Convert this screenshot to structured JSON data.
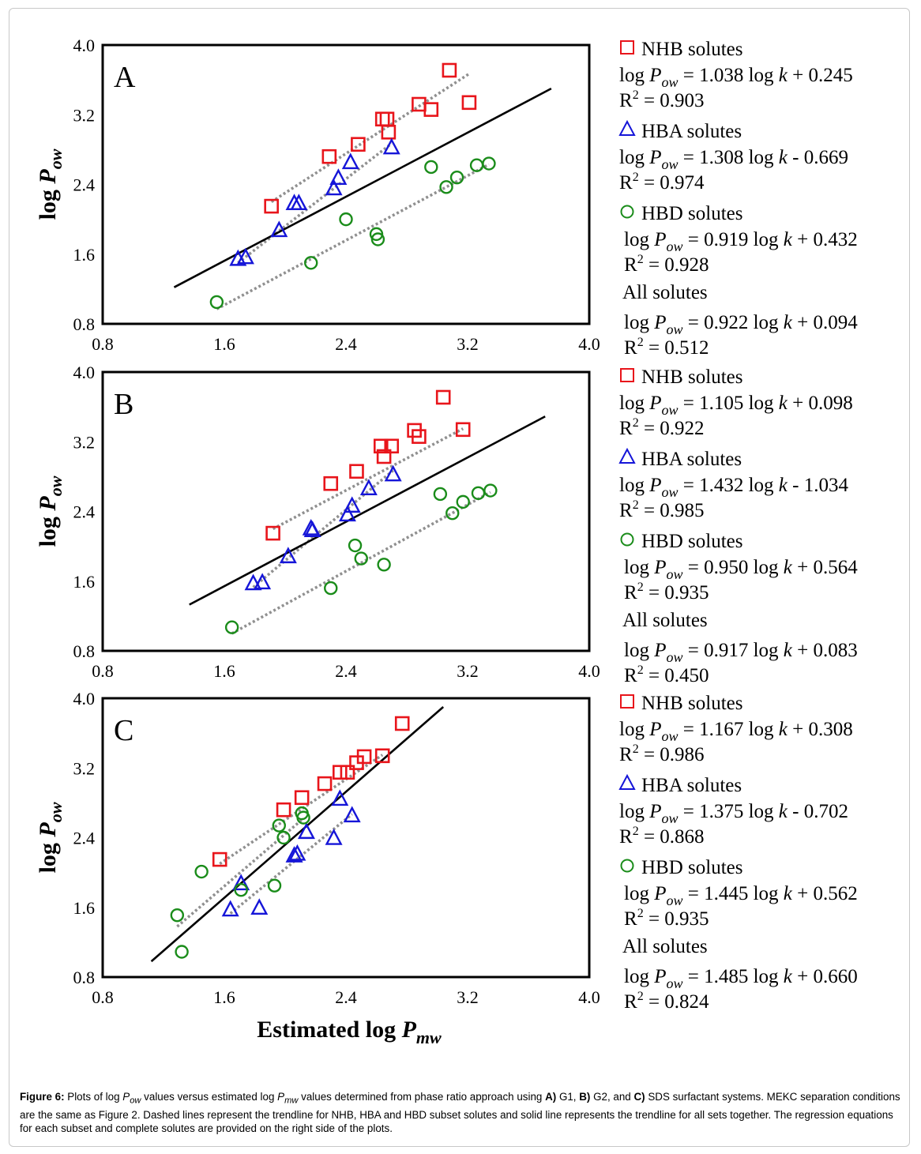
{
  "colors": {
    "nhb": "#e8151b",
    "hba": "#1515d8",
    "hbd": "#1a8c1a",
    "trend_all": "#000000",
    "trend_subset": "#909090"
  },
  "xlabel_main": "Estimated log",
  "xlabel_var": "P",
  "xlabel_sub": "mw",
  "ylabel_main": "log",
  "ylabel_var": "P",
  "ylabel_sub": "ow",
  "caption": {
    "fig": "Figure 6:",
    "t1": " Plots of log ",
    "p1": "P",
    "s1": "ow",
    "t2": " values versus estimated log ",
    "p2": "P",
    "s2": "mw",
    "t3": " values determined from phase ratio approach using ",
    "a": "A)",
    "t4": " G1, ",
    "b": "B)",
    "t5": " G2, and ",
    "c": "C)",
    "t6": " SDS surfactant systems. MEKC separation conditions are the same as Figure 2. Dashed lines represent the trendline for NHB, HBA and HBD subset solutes and solid line represents the trendline for all sets together. The regression equations for each subset and complete solutes are provided on the right side of the plots."
  },
  "chart_data": [
    {
      "type": "scatter",
      "panel": "A",
      "xlim": [
        0.8,
        4.0
      ],
      "ylim": [
        0.8,
        4.0
      ],
      "xticks": [
        "0.8",
        "1.6",
        "2.4",
        "3.2",
        "4.0"
      ],
      "yticks": [
        "0.8",
        "1.6",
        "2.4",
        "3.2",
        "4.0"
      ],
      "series": [
        {
          "name": "NHB solutes",
          "marker": "square",
          "color": "#e8151b",
          "x": [
            1.91,
            2.29,
            2.48,
            2.64,
            2.67,
            2.68,
            2.88,
            2.96,
            3.08,
            3.21
          ],
          "y": [
            2.15,
            2.72,
            2.86,
            3.15,
            3.15,
            3.0,
            3.32,
            3.26,
            3.71,
            3.34
          ],
          "trend": {
            "x1": 1.91,
            "y1": 2.2,
            "x2": 3.21,
            "y2": 3.67
          },
          "equation": [
            "log ",
            "P",
            "ow",
            " = 1.038 log ",
            "k",
            " + 0.245"
          ],
          "r2": "0.903"
        },
        {
          "name": "HBA solutes",
          "marker": "triangle",
          "color": "#1515d8",
          "x": [
            1.69,
            1.74,
            1.96,
            2.06,
            2.09,
            2.32,
            2.35,
            2.43,
            2.7
          ],
          "y": [
            1.54,
            1.56,
            1.87,
            2.18,
            2.18,
            2.35,
            2.47,
            2.65,
            2.82
          ],
          "trend": {
            "x1": 1.69,
            "y1": 1.5,
            "x2": 2.7,
            "y2": 2.87
          },
          "equation": [
            "log ",
            "P",
            "ow",
            " = 1.308 log ",
            "k",
            " - 0.669"
          ],
          "r2": "0.974"
        },
        {
          "name": "HBD solutes",
          "marker": "circle",
          "color": "#1a8c1a",
          "x": [
            1.55,
            2.17,
            2.4,
            2.6,
            2.61,
            2.96,
            3.06,
            3.13,
            3.26,
            3.34
          ],
          "y": [
            1.05,
            1.5,
            2.0,
            1.83,
            1.77,
            2.6,
            2.37,
            2.48,
            2.62,
            2.64
          ],
          "trend": {
            "x1": 1.55,
            "y1": 0.97,
            "x2": 3.34,
            "y2": 2.63
          },
          "equation": [
            "log ",
            "P",
            "ow",
            " = 0.919 log ",
            "k",
            " + 0.432"
          ],
          "r2": "0.928"
        }
      ],
      "trend_all": {
        "x1": 1.27,
        "y1": 1.22,
        "x2": 3.75,
        "y2": 3.5
      },
      "all_equation": [
        "log ",
        "P",
        "ow",
        " = 0.922 log ",
        "k",
        " + 0.094"
      ],
      "all_r2": "0.512",
      "all_label": "All solutes"
    },
    {
      "type": "scatter",
      "panel": "B",
      "xlim": [
        0.8,
        4.0
      ],
      "ylim": [
        0.8,
        4.0
      ],
      "xticks": [
        "0.8",
        "1.6",
        "2.4",
        "3.2",
        "4.0"
      ],
      "yticks": [
        "0.8",
        "1.6",
        "2.4",
        "3.2",
        "4.0"
      ],
      "series": [
        {
          "name": "NHB solutes",
          "marker": "square",
          "color": "#e8151b",
          "x": [
            1.92,
            2.3,
            2.47,
            2.63,
            2.65,
            2.7,
            2.85,
            2.88,
            3.04,
            3.17
          ],
          "y": [
            2.15,
            2.72,
            2.86,
            3.15,
            3.03,
            3.15,
            3.33,
            3.26,
            3.71,
            3.34
          ],
          "trend": {
            "x1": 1.92,
            "y1": 2.2,
            "x2": 3.17,
            "y2": 3.35
          },
          "equation": [
            "log ",
            "P",
            "ow",
            " = 1.105 log ",
            "k",
            " + 0.098"
          ],
          "r2": "0.922"
        },
        {
          "name": "HBA solutes",
          "marker": "triangle",
          "color": "#1515d8",
          "x": [
            1.79,
            1.85,
            2.02,
            2.17,
            2.18,
            2.41,
            2.44,
            2.55,
            2.71
          ],
          "y": [
            1.57,
            1.58,
            1.88,
            2.2,
            2.18,
            2.36,
            2.46,
            2.66,
            2.82
          ],
          "trend": {
            "x1": 1.79,
            "y1": 1.53,
            "x2": 2.71,
            "y2": 2.87
          },
          "equation": [
            "log ",
            "P",
            "ow",
            " = 1.432 log ",
            "k",
            " - 1.034"
          ],
          "r2": "0.985"
        },
        {
          "name": "HBD solutes",
          "marker": "circle",
          "color": "#1a8c1a",
          "x": [
            1.65,
            2.3,
            2.46,
            2.5,
            2.65,
            3.02,
            3.1,
            3.17,
            3.27,
            3.35
          ],
          "y": [
            1.07,
            1.52,
            2.01,
            1.86,
            1.79,
            2.6,
            2.38,
            2.51,
            2.61,
            2.64
          ],
          "trend": {
            "x1": 1.65,
            "y1": 1.0,
            "x2": 3.35,
            "y2": 2.62
          },
          "equation": [
            "log ",
            "P",
            "ow",
            " = 0.950 log ",
            "k",
            " + 0.564"
          ],
          "r2": "0.935"
        }
      ],
      "trend_all": {
        "x1": 1.37,
        "y1": 1.33,
        "x2": 3.71,
        "y2": 3.49
      },
      "all_equation": [
        "log ",
        "P",
        "ow",
        " = 0.917 log ",
        "k",
        " + 0.083"
      ],
      "all_r2": "0.450",
      "all_label": "All solutes"
    },
    {
      "type": "scatter",
      "panel": "C",
      "xlim": [
        0.8,
        4.0
      ],
      "ylim": [
        0.8,
        4.0
      ],
      "xticks": [
        "0.8",
        "1.6",
        "2.4",
        "3.2",
        "4.0"
      ],
      "yticks": [
        "0.8",
        "1.6",
        "2.4",
        "3.2",
        "4.0"
      ],
      "series": [
        {
          "name": "NHB solutes",
          "marker": "square",
          "color": "#e8151b",
          "x": [
            1.57,
            1.99,
            2.11,
            2.26,
            2.36,
            2.41,
            2.47,
            2.52,
            2.64,
            2.77
          ],
          "y": [
            2.15,
            2.72,
            2.86,
            3.02,
            3.15,
            3.15,
            3.26,
            3.33,
            3.34,
            3.71
          ],
          "trend": {
            "x1": 1.57,
            "y1": 2.1,
            "x2": 2.64,
            "y2": 3.35
          },
          "equation": [
            "log ",
            "P",
            "ow",
            " = 1.167 log ",
            "k",
            " + 0.308"
          ],
          "r2": "0.986"
        },
        {
          "name": "HBA solutes",
          "marker": "triangle",
          "color": "#1515d8",
          "x": [
            1.64,
            1.71,
            1.83,
            2.06,
            2.08,
            2.14,
            2.32,
            2.36,
            2.44
          ],
          "y": [
            1.57,
            1.87,
            1.59,
            2.19,
            2.21,
            2.46,
            2.39,
            2.84,
            2.65
          ],
          "trend": {
            "x1": 1.64,
            "y1": 1.53,
            "x2": 2.44,
            "y2": 2.67
          },
          "equation": [
            "log ",
            "P",
            "ow",
            " = 1.375 log ",
            "k",
            " - 0.702"
          ],
          "r2": "0.868"
        },
        {
          "name": "HBD solutes",
          "marker": "circle",
          "color": "#1a8c1a",
          "x": [
            1.29,
            1.32,
            1.45,
            1.71,
            1.93,
            1.96,
            1.99,
            2.11,
            2.12
          ],
          "y": [
            1.51,
            1.09,
            2.01,
            1.8,
            1.85,
            2.54,
            2.4,
            2.68,
            2.63
          ],
          "trend": {
            "x1": 1.29,
            "y1": 1.38,
            "x2": 2.12,
            "y2": 2.62
          },
          "equation": [
            "log ",
            "P",
            "ow",
            " = 1.445 log ",
            "k",
            " + 0.562"
          ],
          "r2": "0.935"
        }
      ],
      "trend_all": {
        "x1": 1.12,
        "y1": 0.98,
        "x2": 3.04,
        "y2": 3.9
      },
      "all_equation": [
        "log ",
        "P",
        "ow",
        " = 1.485 log ",
        "k",
        " + 0.660"
      ],
      "all_r2": "0.824",
      "all_label": "All solutes"
    }
  ]
}
